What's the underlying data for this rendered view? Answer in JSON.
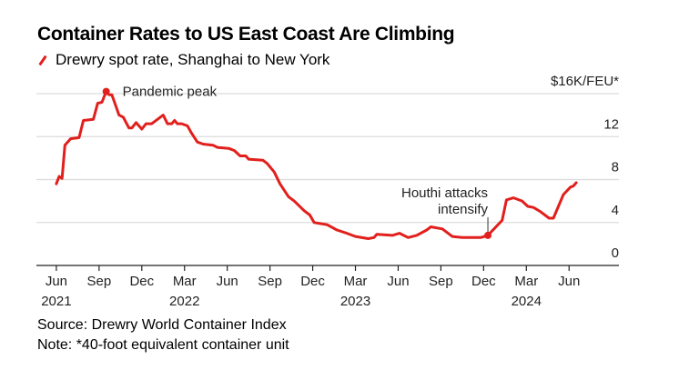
{
  "chart_data": {
    "type": "line",
    "title": "Container Rates to US East Coast Are Climbing",
    "legend": [
      "Drewry spot rate, Shanghai to New York"
    ],
    "ylabel": "$K/FEU*",
    "ylim": [
      0,
      16
    ],
    "yticks": [
      {
        "value": 16,
        "label": "$16K/FEU*"
      },
      {
        "value": 12,
        "label": "12"
      },
      {
        "value": 8,
        "label": "8"
      },
      {
        "value": 4,
        "label": "4"
      },
      {
        "value": 0,
        "label": "0"
      }
    ],
    "x_unit": "months since Jun 2021",
    "xlim": [
      -1.4,
      39.5
    ],
    "xticks": [
      {
        "t": 0,
        "label": "Jun",
        "year": "2021"
      },
      {
        "t": 3,
        "label": "Sep"
      },
      {
        "t": 6,
        "label": "Dec"
      },
      {
        "t": 9,
        "label": "Mar",
        "year": "2022"
      },
      {
        "t": 12,
        "label": "Jun"
      },
      {
        "t": 15,
        "label": "Sep"
      },
      {
        "t": 18,
        "label": "Dec"
      },
      {
        "t": 21,
        "label": "Mar",
        "year": "2023"
      },
      {
        "t": 24,
        "label": "Jun"
      },
      {
        "t": 27,
        "label": "Sep"
      },
      {
        "t": 30,
        "label": "Dec"
      },
      {
        "t": 33,
        "label": "Mar",
        "year": "2024"
      },
      {
        "t": 36,
        "label": "Jun"
      }
    ],
    "grid": true,
    "series": [
      {
        "name": "Drewry spot rate, Shanghai to New York",
        "color": "#e1201d",
        "t": [
          0,
          0.2,
          0.4,
          0.6,
          1.0,
          1.6,
          1.9,
          2.6,
          2.9,
          3.2,
          3.5,
          3.7,
          3.9,
          4.4,
          4.7,
          5.1,
          5.3,
          5.6,
          6.0,
          6.3,
          6.7,
          7.1,
          7.5,
          7.8,
          8.1,
          8.3,
          8.5,
          8.8,
          9.2,
          9.5,
          9.9,
          10.3,
          11.0,
          11.3,
          12.1,
          12.5,
          12.9,
          13.3,
          13.5,
          14.5,
          14.8,
          15.3,
          15.7,
          16.3,
          16.7,
          17.4,
          17.8,
          18.1,
          19.0,
          19.7,
          20.4,
          21.0,
          21.9,
          22.3,
          22.5,
          23.6,
          24.1,
          24.7,
          25.3,
          26.0,
          26.3,
          27.1,
          27.8,
          28.5,
          28.9,
          29.8,
          30.3,
          31.3,
          31.6,
          32.1,
          32.7,
          33.1,
          33.5,
          34.0,
          34.6,
          34.9,
          35.6,
          36.1,
          36.3,
          36.5
        ],
        "values": [
          7.6,
          8.3,
          8.1,
          11.2,
          11.8,
          11.9,
          13.5,
          13.6,
          15.1,
          15.2,
          16.2,
          15.9,
          15.9,
          14.0,
          13.8,
          12.8,
          12.8,
          13.3,
          12.7,
          13.2,
          13.2,
          13.6,
          14.0,
          13.2,
          13.2,
          13.5,
          13.2,
          13.2,
          13.0,
          12.3,
          11.5,
          11.3,
          11.2,
          11.0,
          10.9,
          10.7,
          10.2,
          10.2,
          9.9,
          9.8,
          9.5,
          8.7,
          7.6,
          6.4,
          6.0,
          5.1,
          4.7,
          4.0,
          3.8,
          3.3,
          3.0,
          2.7,
          2.5,
          2.6,
          2.9,
          2.8,
          3.0,
          2.6,
          2.8,
          3.3,
          3.6,
          3.4,
          2.7,
          2.6,
          2.6,
          2.6,
          2.8,
          4.2,
          6.1,
          6.3,
          6.0,
          5.5,
          5.4,
          5.0,
          4.4,
          4.4,
          6.6,
          7.3,
          7.4,
          7.7
        ]
      }
    ],
    "annotations": [
      {
        "t": 3.5,
        "value": 16.2,
        "text": "Pandemic peak"
      },
      {
        "t": 30.3,
        "value": 2.8,
        "lines": [
          "Houthi attacks",
          "intensify"
        ]
      }
    ]
  },
  "source": "Source: Drewry World Container Index",
  "note": "Note: *40-foot equivalent container unit"
}
